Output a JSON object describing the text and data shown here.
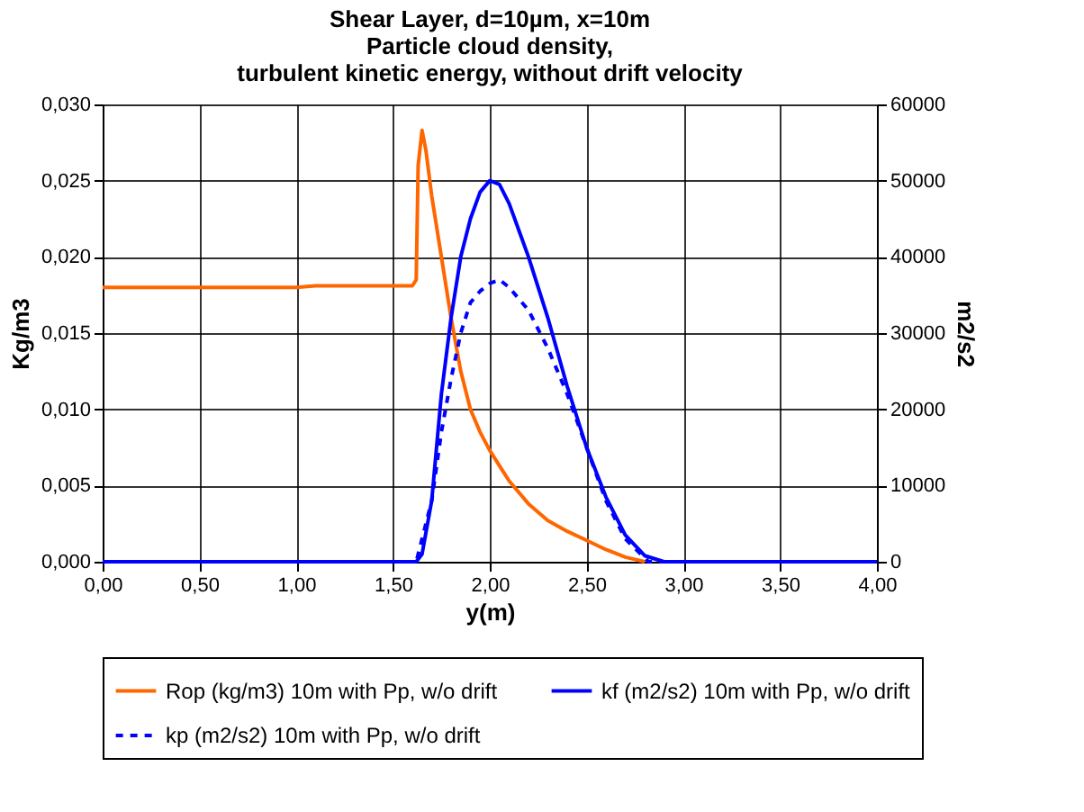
{
  "chart_data": {
    "type": "line",
    "title": "Shear Layer, d=10µm, x=10m\nParticle cloud density,\nturbulent kinetic energy, without drift velocity",
    "xlabel": "y(m)",
    "ylabel": "Kg/m3",
    "y2label": "m2/s2",
    "xlim": [
      0,
      4
    ],
    "xticks": [
      {
        "value": 0,
        "label": "0,00"
      },
      {
        "value": 0.5,
        "label": "0,50"
      },
      {
        "value": 1,
        "label": "1,00"
      },
      {
        "value": 1.5,
        "label": "1,50"
      },
      {
        "value": 2,
        "label": "2,00"
      },
      {
        "value": 2.5,
        "label": "2,50"
      },
      {
        "value": 3,
        "label": "3,00"
      },
      {
        "value": 3.5,
        "label": "3,50"
      },
      {
        "value": 4,
        "label": "4,00"
      }
    ],
    "ylim": [
      0,
      0.03
    ],
    "yticks": [
      {
        "value": 0,
        "label": "0,000"
      },
      {
        "value": 0.005,
        "label": "0,005"
      },
      {
        "value": 0.01,
        "label": "0,010"
      },
      {
        "value": 0.015,
        "label": "0,015"
      },
      {
        "value": 0.02,
        "label": "0,020"
      },
      {
        "value": 0.025,
        "label": "0,025"
      },
      {
        "value": 0.03,
        "label": "0,030"
      }
    ],
    "y2lim": [
      0,
      60000
    ],
    "y2ticks": [
      0,
      10000,
      20000,
      30000,
      40000,
      50000,
      60000
    ],
    "grid": true,
    "legend": "bottom",
    "marker": "none",
    "series": [
      {
        "name": "Rop (kg/m3) 10m with Pp, w/o drift",
        "color": "#ff6600",
        "line_style": "solid",
        "x": [
          0,
          0.5,
          1.0,
          1.1,
          1.6,
          1.62,
          1.63,
          1.65,
          1.67,
          1.7,
          1.75,
          1.8,
          1.85,
          1.9,
          1.95,
          2.0,
          2.05,
          2.1,
          2.2,
          2.3,
          2.4,
          2.5,
          2.6,
          2.7,
          2.8
        ],
        "values": [
          0.018,
          0.018,
          0.018,
          0.0181,
          0.0181,
          0.0185,
          0.026,
          0.0283,
          0.027,
          0.024,
          0.02,
          0.016,
          0.0125,
          0.01,
          0.0085,
          0.0073,
          0.0063,
          0.0053,
          0.0038,
          0.0027,
          0.002,
          0.0014,
          0.0008,
          0.0003,
          0
        ]
      },
      {
        "name": "kf (m2/s2) 10m with Pp, w/o drift",
        "color": "#0000ff",
        "line_style": "solid",
        "axis": "y2",
        "x": [
          0,
          0.5,
          1.0,
          1.5,
          1.62,
          1.65,
          1.7,
          1.75,
          1.8,
          1.85,
          1.9,
          1.95,
          2.0,
          2.05,
          2.1,
          2.15,
          2.2,
          2.3,
          2.4,
          2.5,
          2.6,
          2.7,
          2.8,
          2.9,
          3.0,
          3.5,
          4.0
        ],
        "values": [
          0,
          0,
          0,
          0,
          0,
          1000,
          8000,
          22000,
          32000,
          40000,
          45000,
          48500,
          50000,
          49500,
          47000,
          43500,
          40000,
          32000,
          23000,
          15000,
          8500,
          3500,
          800,
          0,
          0,
          0,
          0
        ]
      },
      {
        "name": "kp (m2/s2) 10m with Pp, w/o drift",
        "color": "#0000ff",
        "line_style": "dashed",
        "axis": "y2",
        "x": [
          0,
          0.5,
          1.0,
          1.5,
          1.62,
          1.65,
          1.7,
          1.75,
          1.8,
          1.85,
          1.9,
          1.95,
          2.0,
          2.05,
          2.1,
          2.2,
          2.3,
          2.4,
          2.5,
          2.6,
          2.7,
          2.8,
          2.82,
          3.0,
          3.5,
          4.0
        ],
        "values": [
          0,
          0,
          0,
          0,
          0,
          3000,
          8000,
          17000,
          24000,
          30000,
          34000,
          35500,
          36500,
          37000,
          36000,
          33000,
          28000,
          22000,
          15000,
          8000,
          3000,
          500,
          0,
          0,
          0,
          0
        ]
      }
    ]
  }
}
